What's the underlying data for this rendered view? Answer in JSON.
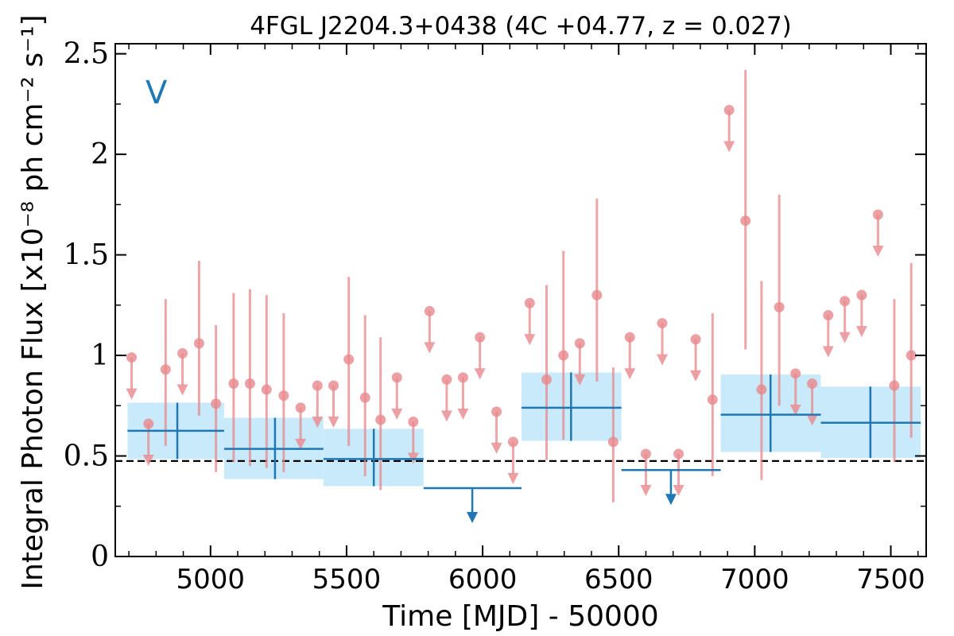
{
  "chart_data": {
    "type": "scatter",
    "title": "4FGL J2204.3+0438 (4C +04.77, z = 0.027)",
    "xlabel": "Time [MJD] - 50000",
    "ylabel": "Integral Photon Flux [x10⁻⁸ ph cm⁻² s⁻¹]",
    "panel_label": "V",
    "xlim": [
      4650,
      7630
    ],
    "ylim": [
      0,
      2.55
    ],
    "x_ticks": [
      5000,
      5500,
      6000,
      6500,
      7000,
      7500
    ],
    "x_tick_labels": [
      "5000",
      "5500",
      "6000",
      "6500",
      "7000",
      "7500"
    ],
    "y_ticks": [
      0,
      0.5,
      1,
      1.5,
      2,
      2.5
    ],
    "y_tick_labels": [
      "0",
      "0.5",
      "1",
      "1.5",
      "2",
      "2.5"
    ],
    "reference_line": {
      "y": 0.475,
      "style": "dashed"
    },
    "colors": {
      "short_bins": "#e8888c",
      "long_bins": "#1f77b4",
      "long_band": "#c9eafb",
      "reference": "#000000"
    },
    "short_bins_upper_limits": [
      {
        "x": 4710,
        "y": 0.99
      },
      {
        "x": 4772,
        "y": 0.66
      },
      {
        "x": 4897,
        "y": 1.01
      },
      {
        "x": 5331,
        "y": 0.74
      },
      {
        "x": 5393,
        "y": 0.85
      },
      {
        "x": 5452,
        "y": 0.85
      },
      {
        "x": 5685,
        "y": 0.89
      },
      {
        "x": 5745,
        "y": 0.67
      },
      {
        "x": 5805,
        "y": 1.22
      },
      {
        "x": 5868,
        "y": 0.88
      },
      {
        "x": 5928,
        "y": 0.89
      },
      {
        "x": 5990,
        "y": 1.09
      },
      {
        "x": 6051,
        "y": 0.72
      },
      {
        "x": 6112,
        "y": 0.57
      },
      {
        "x": 6173,
        "y": 1.26
      },
      {
        "x": 6357,
        "y": 1.06
      },
      {
        "x": 6541,
        "y": 1.09
      },
      {
        "x": 6600,
        "y": 0.51
      },
      {
        "x": 6660,
        "y": 1.16
      },
      {
        "x": 6720,
        "y": 0.51
      },
      {
        "x": 6783,
        "y": 1.08
      },
      {
        "x": 6906,
        "y": 2.22
      },
      {
        "x": 7150,
        "y": 0.91
      },
      {
        "x": 7211,
        "y": 0.86
      },
      {
        "x": 7270,
        "y": 1.2
      },
      {
        "x": 7331,
        "y": 1.27
      },
      {
        "x": 7393,
        "y": 1.3
      },
      {
        "x": 7453,
        "y": 1.7
      }
    ],
    "short_bins_detections": [
      {
        "x": 4835,
        "y": 0.93,
        "ylo": 0.55,
        "yhi": 1.28
      },
      {
        "x": 4958,
        "y": 1.06,
        "ylo": 0.7,
        "yhi": 1.47
      },
      {
        "x": 5020,
        "y": 0.76,
        "ylo": 0.42,
        "yhi": 1.15
      },
      {
        "x": 5085,
        "y": 0.86,
        "ylo": 0.47,
        "yhi": 1.31
      },
      {
        "x": 5145,
        "y": 0.86,
        "ylo": 0.45,
        "yhi": 1.33
      },
      {
        "x": 5206,
        "y": 0.83,
        "ylo": 0.44,
        "yhi": 1.3
      },
      {
        "x": 5269,
        "y": 0.8,
        "ylo": 0.42,
        "yhi": 1.21
      },
      {
        "x": 5508,
        "y": 0.98,
        "ylo": 0.55,
        "yhi": 1.39
      },
      {
        "x": 5568,
        "y": 0.79,
        "ylo": 0.4,
        "yhi": 1.2
      },
      {
        "x": 5625,
        "y": 0.68,
        "ylo": 0.33,
        "yhi": 1.09
      },
      {
        "x": 6235,
        "y": 0.88,
        "ylo": 0.48,
        "yhi": 1.35
      },
      {
        "x": 6297,
        "y": 1.0,
        "ylo": 0.58,
        "yhi": 1.52
      },
      {
        "x": 6420,
        "y": 1.3,
        "ylo": 0.87,
        "yhi": 1.78
      },
      {
        "x": 6480,
        "y": 0.57,
        "ylo": 0.27,
        "yhi": 0.94
      },
      {
        "x": 6845,
        "y": 0.78,
        "ylo": 0.4,
        "yhi": 1.21
      },
      {
        "x": 6966,
        "y": 1.67,
        "ylo": 1.03,
        "yhi": 2.42
      },
      {
        "x": 7025,
        "y": 0.83,
        "ylo": 0.38,
        "yhi": 1.37
      },
      {
        "x": 7090,
        "y": 1.24,
        "ylo": 0.75,
        "yhi": 1.8
      },
      {
        "x": 7513,
        "y": 0.85,
        "ylo": 0.47,
        "yhi": 1.28
      },
      {
        "x": 7575,
        "y": 1.0,
        "ylo": 0.59,
        "yhi": 1.46
      }
    ],
    "long_bins_detections": [
      {
        "x0": 4695,
        "x1": 5050,
        "xc": 4878,
        "y": 0.625,
        "ylo": 0.485,
        "yhi": 0.765
      },
      {
        "x0": 5050,
        "x1": 5415,
        "xc": 5237,
        "y": 0.535,
        "ylo": 0.385,
        "yhi": 0.69
      },
      {
        "x0": 5415,
        "x1": 5783,
        "xc": 5600,
        "y": 0.485,
        "ylo": 0.35,
        "yhi": 0.635
      },
      {
        "x0": 6143,
        "x1": 6510,
        "xc": 6325,
        "y": 0.74,
        "ylo": 0.575,
        "yhi": 0.915
      },
      {
        "x0": 6875,
        "x1": 7243,
        "xc": 7058,
        "y": 0.705,
        "ylo": 0.52,
        "yhi": 0.905
      },
      {
        "x0": 7243,
        "x1": 7610,
        "xc": 7425,
        "y": 0.665,
        "ylo": 0.49,
        "yhi": 0.845
      }
    ],
    "long_bins_upper_limits": [
      {
        "x0": 5783,
        "x1": 6143,
        "xc": 5962,
        "y": 0.34
      },
      {
        "x0": 6510,
        "x1": 6875,
        "xc": 6692,
        "y": 0.43
      }
    ]
  }
}
